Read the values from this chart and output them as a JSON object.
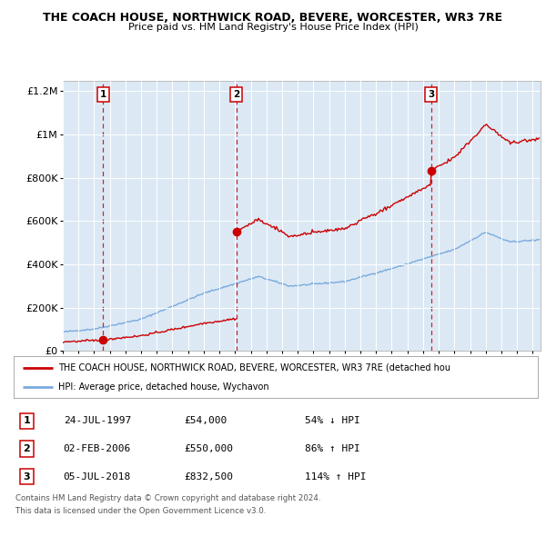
{
  "title1": "THE COACH HOUSE, NORTHWICK ROAD, BEVERE, WORCESTER, WR3 7RE",
  "title2": "Price paid vs. HM Land Registry's House Price Index (HPI)",
  "bg_color": "#dce9f5",
  "sale_dates": [
    1997.56,
    2006.09,
    2018.51
  ],
  "sale_prices": [
    54000,
    550000,
    832500
  ],
  "sale_labels": [
    "1",
    "2",
    "3"
  ],
  "red_line_color": "#cc0000",
  "blue_line_color": "#7aaadd",
  "dashed_line_color": "#cc0000",
  "legend_label_red": "THE COACH HOUSE, NORTHWICK ROAD, BEVERE, WORCESTER, WR3 7RE (detached hou",
  "legend_label_blue": "HPI: Average price, detached house, Wychavon",
  "table_entries": [
    {
      "num": "1",
      "date": "24-JUL-1997",
      "price": "£54,000",
      "hpi": "54% ↓ HPI"
    },
    {
      "num": "2",
      "date": "02-FEB-2006",
      "price": "£550,000",
      "hpi": "86% ↑ HPI"
    },
    {
      "num": "3",
      "date": "05-JUL-2018",
      "price": "£832,500",
      "hpi": "114% ↑ HPI"
    }
  ],
  "footer1": "Contains HM Land Registry data © Crown copyright and database right 2024.",
  "footer2": "This data is licensed under the Open Government Licence v3.0.",
  "xmin": 1995.0,
  "xmax": 2025.5,
  "ymin": 0,
  "ymax": 1250000,
  "yticks": [
    0,
    200000,
    400000,
    600000,
    800000,
    1000000,
    1200000
  ],
  "ytick_labels": [
    "£0",
    "£200K",
    "£400K",
    "£600K",
    "£800K",
    "£1M",
    "£1.2M"
  ]
}
